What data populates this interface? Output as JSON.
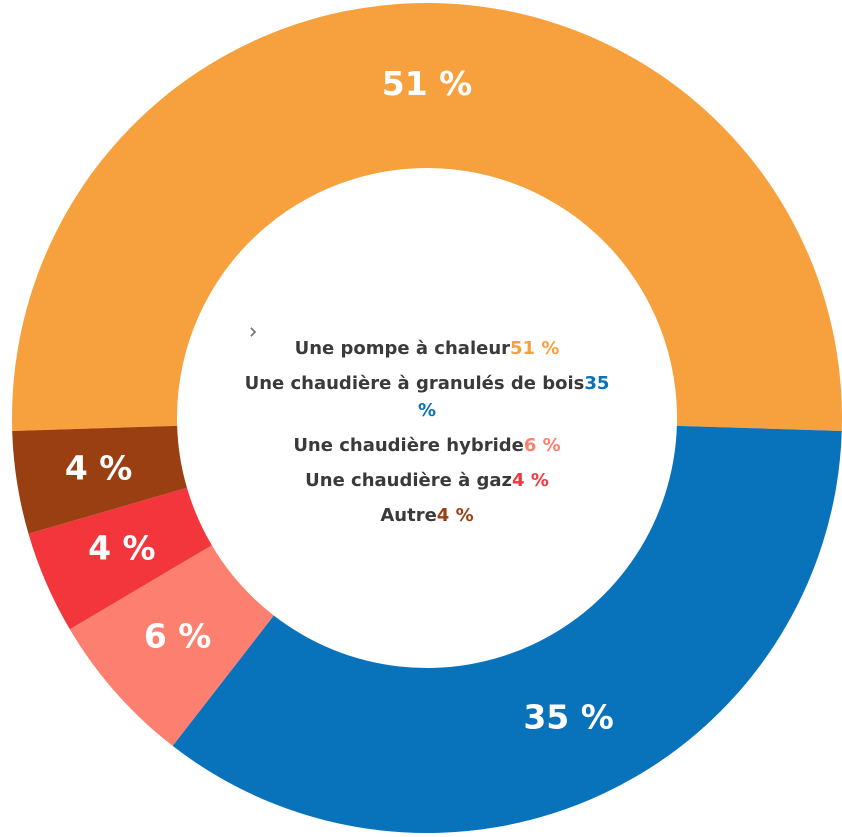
{
  "chart_data": {
    "type": "donut",
    "categories": [
      "Une pompe à chaleur",
      "Une chaudière à granulés de bois",
      "Une chaudière hybride",
      "Une chaudière à gaz",
      "Autre"
    ],
    "values": [
      51,
      35,
      6,
      4,
      4
    ],
    "value_labels": [
      "51 %",
      "35 %",
      "6 %",
      "4 %",
      "4 %"
    ],
    "colors": [
      "#f7a13e",
      "#0872bb",
      "#fc7f6f",
      "#f2363b",
      "#9a3f12"
    ]
  }
}
